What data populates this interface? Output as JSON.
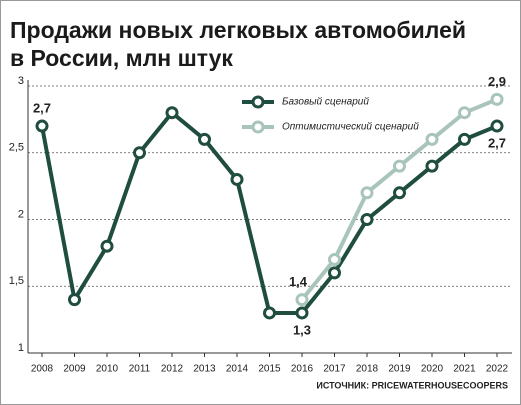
{
  "chart_data": {
    "type": "line",
    "title": [
      "Продажи новых легковых автомобилей",
      "в России, млн штук"
    ],
    "categories": [
      "2008",
      "2009",
      "2010",
      "2011",
      "2012",
      "2013",
      "2014",
      "2015",
      "2016",
      "2017",
      "2018",
      "2019",
      "2020",
      "2021",
      "2022"
    ],
    "series": [
      {
        "name": "Базовый сценарий",
        "color": "#1f4d40",
        "values": [
          2.7,
          1.4,
          1.8,
          2.5,
          2.8,
          2.6,
          2.3,
          1.3,
          1.3,
          1.6,
          2.0,
          2.2,
          2.4,
          2.6,
          2.7
        ],
        "value_labels": [
          "2,7",
          null,
          null,
          null,
          null,
          null,
          null,
          null,
          "1,3",
          null,
          null,
          null,
          null,
          null,
          "2,7"
        ]
      },
      {
        "name": "Оптимистический сценарий",
        "color": "#a9c4bb",
        "values": [
          null,
          null,
          null,
          null,
          null,
          null,
          null,
          null,
          1.4,
          1.7,
          2.2,
          2.4,
          2.6,
          2.8,
          2.9
        ],
        "value_labels": [
          null,
          null,
          null,
          null,
          null,
          null,
          null,
          null,
          "1,4",
          null,
          null,
          null,
          null,
          null,
          "2,9"
        ]
      }
    ],
    "ylim": [
      1,
      3
    ],
    "yticks": [
      1,
      {
        "value": 1.5,
        "label": "1,5"
      },
      2,
      {
        "value": 2.5,
        "label": "2,5"
      },
      3
    ],
    "grid": true,
    "source": "ИСТОЧНИК: PRICEWATERHOUSECOOPERS"
  }
}
